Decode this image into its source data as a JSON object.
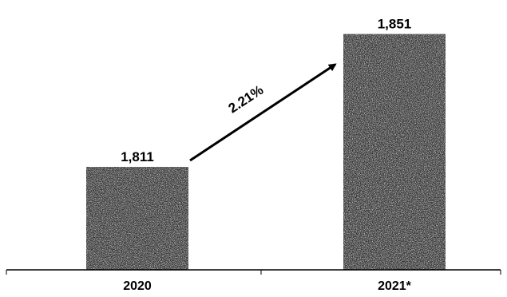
{
  "chart_data": {
    "type": "bar",
    "categories": [
      "2020",
      "2021*"
    ],
    "values": [
      1811,
      1851
    ],
    "value_labels": [
      "1,811",
      "1,851"
    ],
    "title": "",
    "xlabel": "",
    "ylabel": "",
    "grid": false,
    "legend": "none",
    "annotations": [
      {
        "text": "2.21%",
        "from_category": "2020",
        "to_category": "2021*",
        "type": "arrow"
      }
    ],
    "bar_color": "#2b2b2b"
  }
}
